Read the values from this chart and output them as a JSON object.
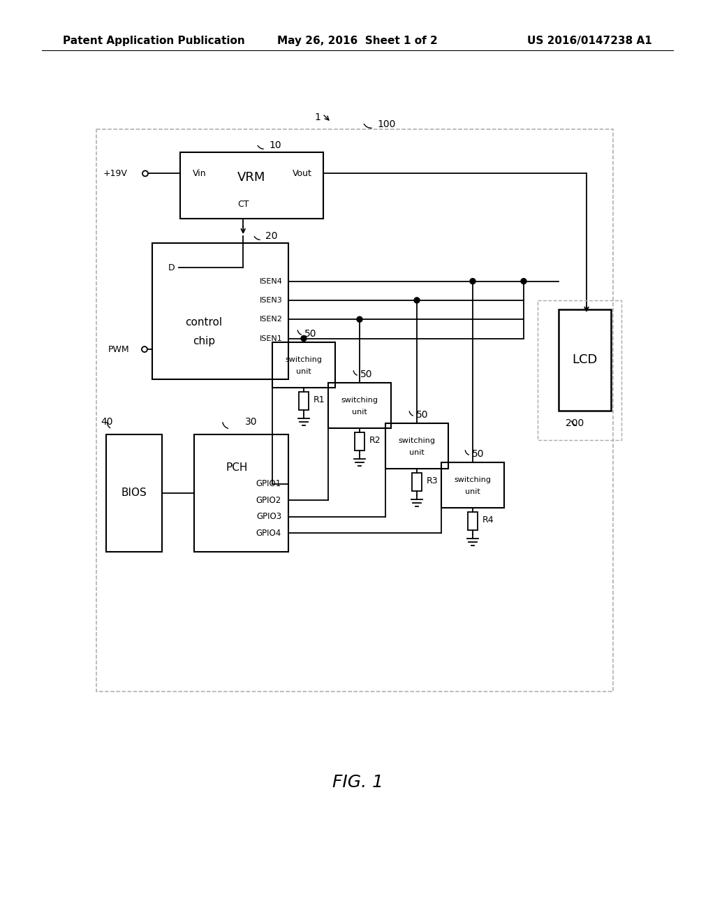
{
  "bg_color": "#ffffff",
  "line_color": "#000000",
  "dashed_color": "#aaaaaa",
  "header_left": "Patent Application Publication",
  "header_mid": "May 26, 2016  Sheet 1 of 2",
  "header_right": "US 2016/0147238 A1",
  "fig_label": "FIG. 1"
}
